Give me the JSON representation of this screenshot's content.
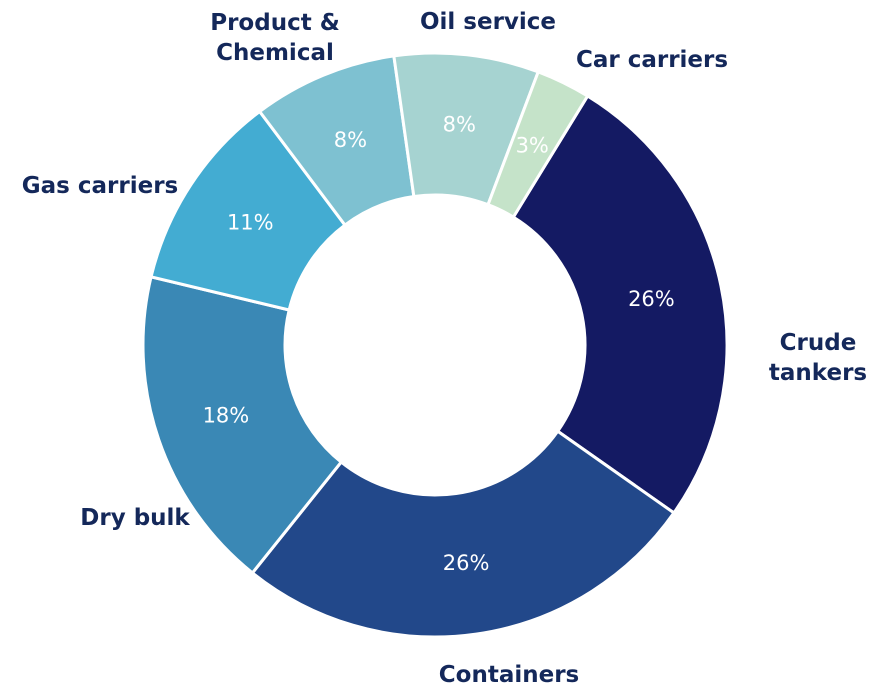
{
  "chart_data": {
    "type": "donut",
    "categories": [
      "Crude\ntankers",
      "Containers",
      "Dry bulk",
      "Gas carriers",
      "Product &\nChemical",
      "Oil service",
      "Car carriers"
    ],
    "values": [
      26,
      26,
      18,
      11,
      8,
      8,
      3
    ],
    "value_labels": [
      "26%",
      "26%",
      "18%",
      "11%",
      "8%",
      "8%",
      "3%"
    ],
    "colors": [
      "#141a63",
      "#22488a",
      "#3a88b5",
      "#43acd2",
      "#7ec1d1",
      "#a6d3d1",
      "#c5e3c9"
    ]
  }
}
